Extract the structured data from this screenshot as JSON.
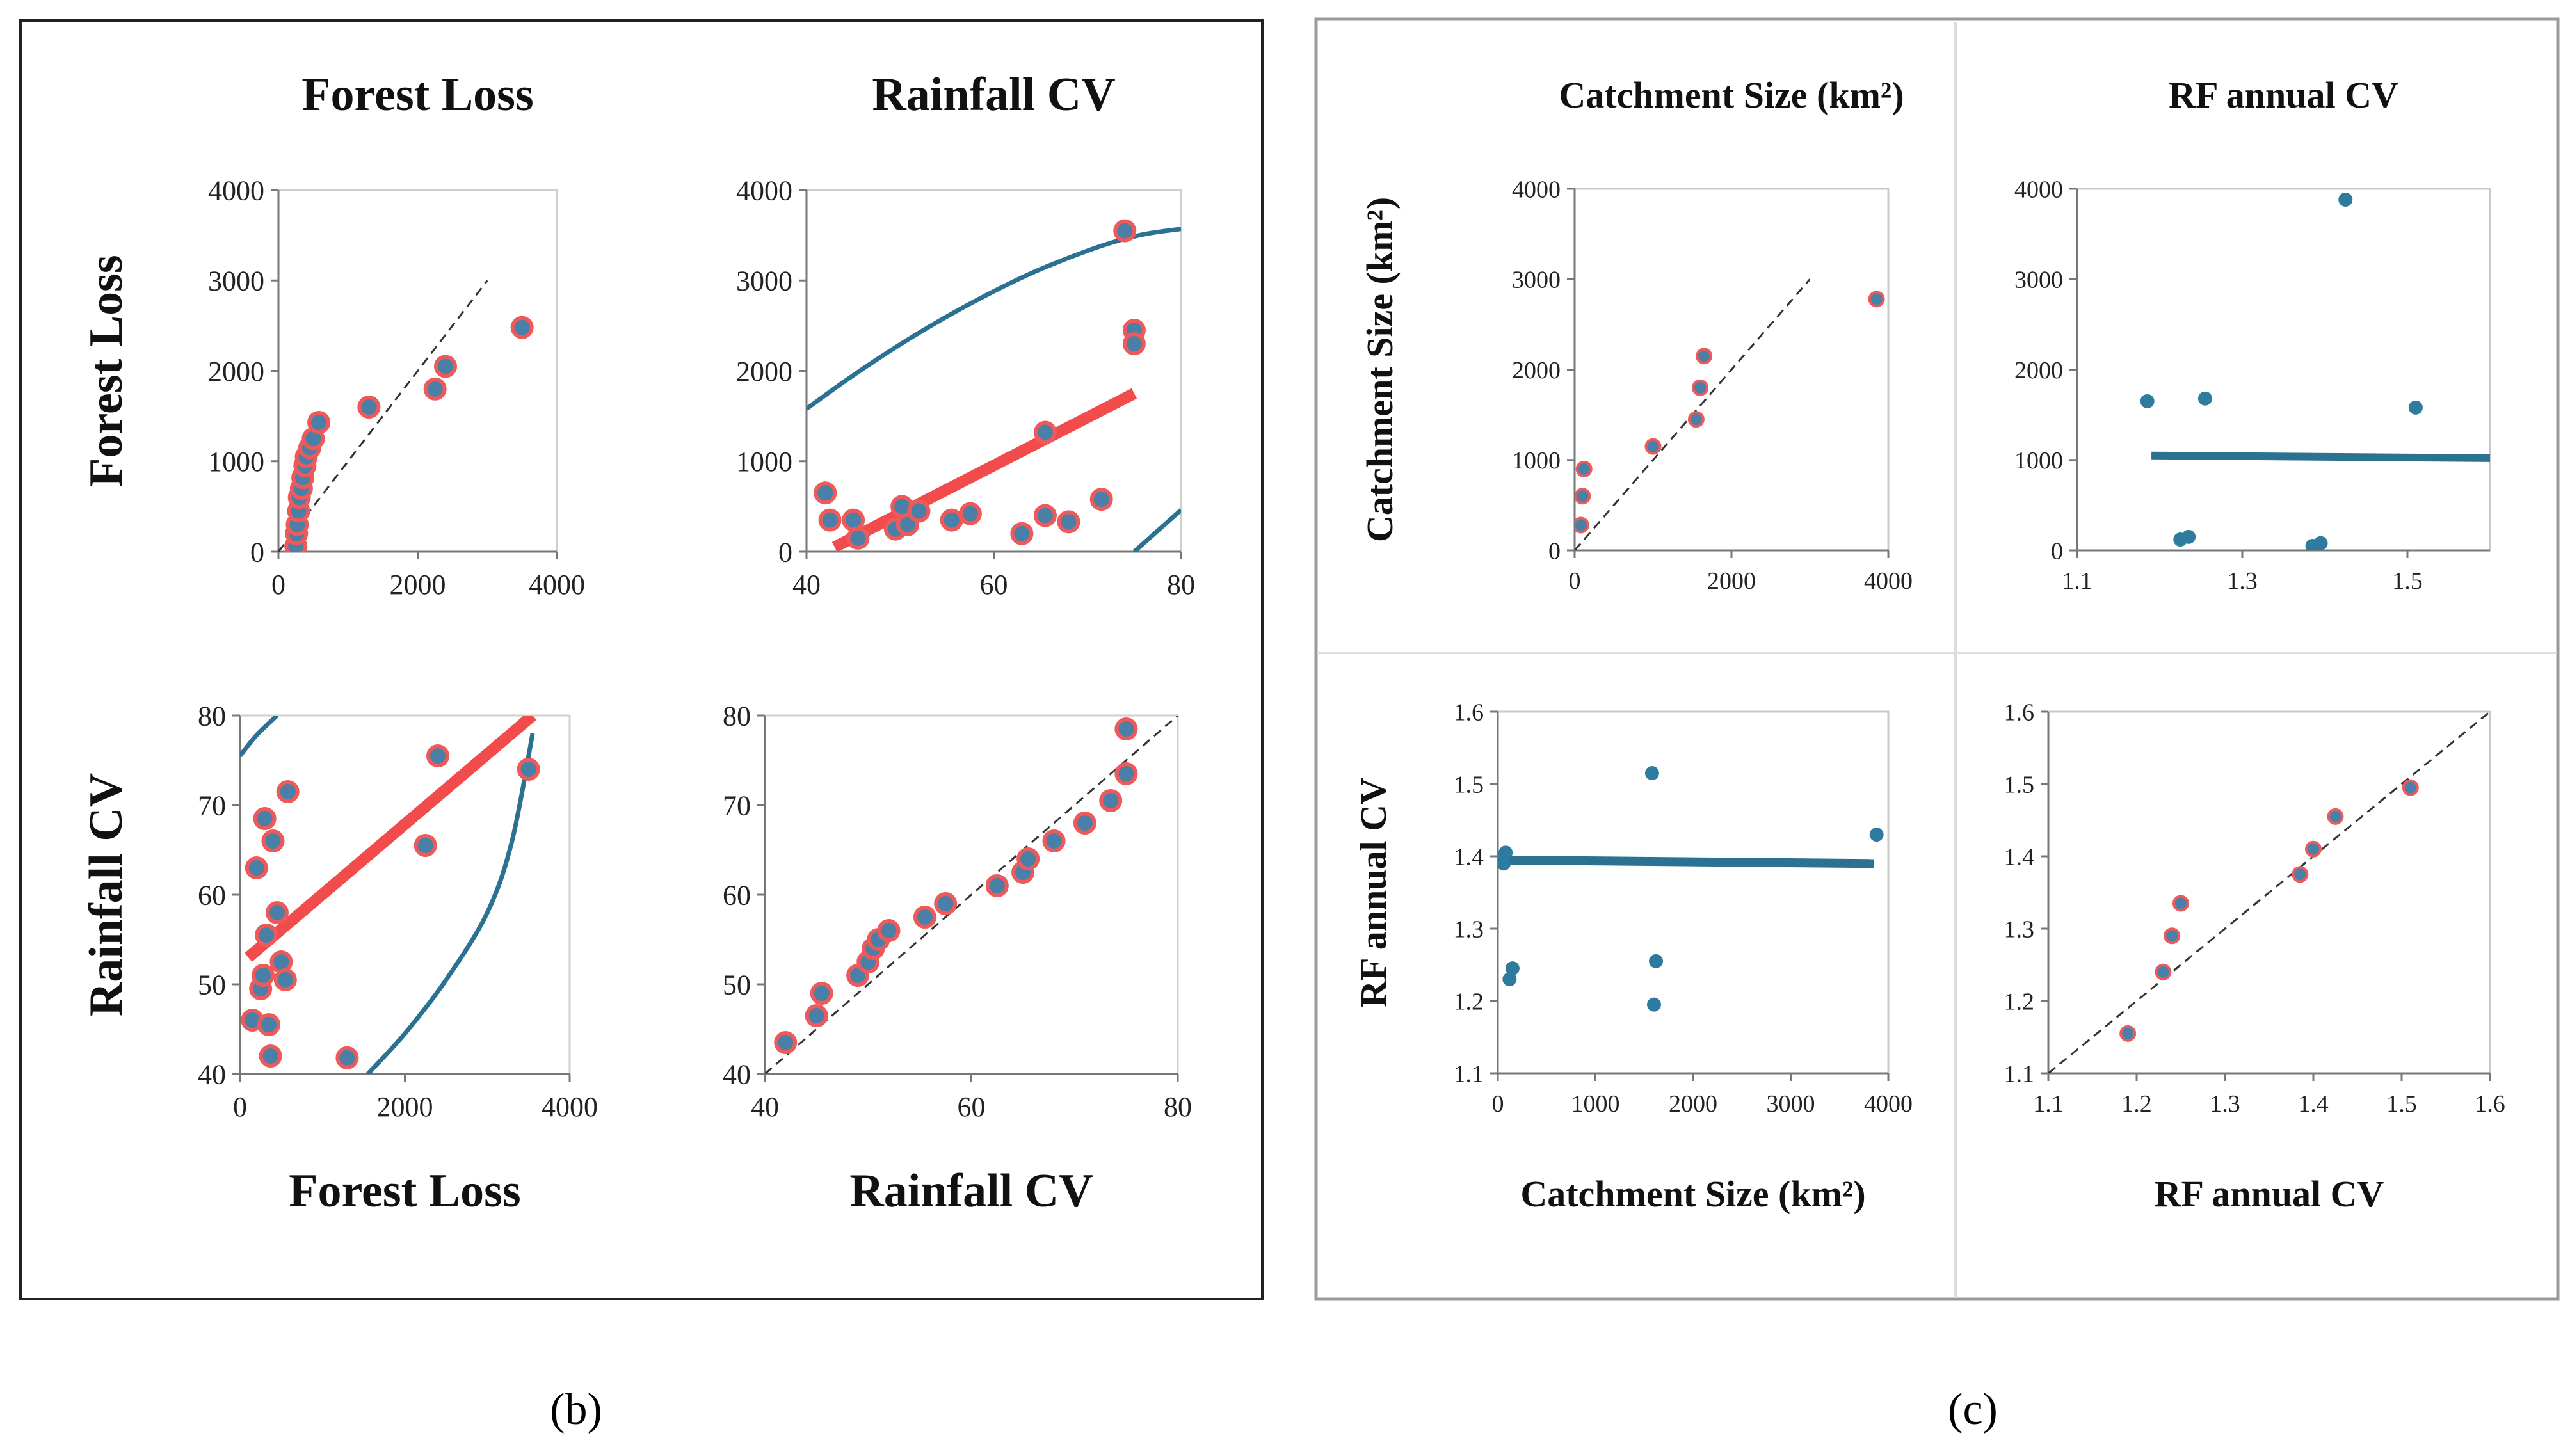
{
  "colors": {
    "point_fill": "#4a7fa8",
    "point_edge": "#ee5a5a",
    "red_line": "#f24b4b",
    "blue_line": "#2b7191",
    "blue_dot": "#2d7ca0",
    "frame": "#222222",
    "grid": "#d8d8d8",
    "dashed": "#333333"
  },
  "panel_labels": {
    "b": "(b)",
    "c": "(c)"
  },
  "chart_data": [
    {
      "id": "b11",
      "type": "scatter",
      "title": "Forest Loss",
      "ylabel": "Forest  Loss",
      "xlabel": "",
      "xlim": [
        0,
        4000
      ],
      "ylim": [
        0,
        4000
      ],
      "xticks": [
        0,
        2000,
        4000
      ],
      "yticks": [
        0,
        1000,
        2000,
        3000,
        4000
      ],
      "xtick_labels": [
        "0",
        "2000",
        "4000"
      ],
      "ytick_labels": [
        "0",
        "1000",
        "2000",
        "3000",
        "4000"
      ],
      "points": {
        "x": [
          250,
          260,
          270,
          290,
          300,
          330,
          350,
          380,
          400,
          450,
          500,
          580,
          1300,
          2250,
          2400,
          3500
        ],
        "y": [
          60,
          200,
          300,
          450,
          600,
          700,
          820,
          950,
          1050,
          1150,
          1250,
          1430,
          1600,
          1800,
          2050,
          2480
        ]
      },
      "ref_line": {
        "x": [
          0,
          3000
        ],
        "y": [
          0,
          3000
        ]
      }
    },
    {
      "id": "b12",
      "type": "scatter",
      "title": "Rainfall  CV",
      "ylabel": "",
      "xlabel": "",
      "xlim": [
        40,
        80
      ],
      "ylim": [
        0,
        4000
      ],
      "xticks": [
        40,
        60,
        80
      ],
      "yticks": [
        0,
        1000,
        2000,
        3000,
        4000
      ],
      "xtick_labels": [
        "40",
        "60",
        "80"
      ],
      "ytick_labels": [
        "0",
        "1000",
        "2000",
        "3000",
        "4000"
      ],
      "points": {
        "x": [
          42,
          42.5,
          45,
          45.5,
          49.5,
          50.2,
          50.8,
          52,
          55.5,
          57.5,
          63,
          65.5,
          65.5,
          68,
          71.5,
          74,
          75,
          75
        ],
        "y": [
          650,
          350,
          350,
          150,
          250,
          500,
          300,
          450,
          350,
          420,
          200,
          1320,
          400,
          330,
          580,
          3550,
          2450,
          2300
        ]
      },
      "fit_line": {
        "x": [
          43,
          75
        ],
        "y": [
          50,
          1750
        ]
      },
      "curves": [
        {
          "x": [
            40,
            44,
            48,
            52,
            56,
            60,
            64,
            68,
            72,
            76,
            80
          ],
          "y": [
            1580,
            1880,
            2160,
            2420,
            2660,
            2880,
            3080,
            3250,
            3400,
            3510,
            3570
          ]
        },
        {
          "x": [
            75,
            77.5,
            80
          ],
          "y": [
            0,
            230,
            460
          ]
        }
      ]
    },
    {
      "id": "b21",
      "type": "scatter",
      "title": "",
      "ylabel": "Rainfall  CV",
      "xlabel": "Forest Loss",
      "xlim": [
        0,
        4000
      ],
      "ylim": [
        40,
        80
      ],
      "xticks": [
        0,
        2000,
        4000
      ],
      "yticks": [
        40,
        50,
        60,
        70,
        80
      ],
      "xtick_labels": [
        "0",
        "2000",
        "4000"
      ],
      "ytick_labels": [
        "40",
        "50",
        "60",
        "70",
        "80"
      ],
      "points": {
        "x": [
          150,
          200,
          250,
          280,
          300,
          320,
          350,
          370,
          400,
          450,
          500,
          550,
          580,
          1300,
          2250,
          2400,
          3500
        ],
        "y": [
          46,
          63,
          49.5,
          51,
          68.5,
          55.5,
          45.5,
          42,
          66,
          58,
          52.5,
          50.5,
          71.5,
          41.8,
          65.5,
          75.5,
          74
        ]
      },
      "fit_line": {
        "x": [
          100,
          3550
        ],
        "y": [
          53,
          80
        ]
      },
      "curves": [
        {
          "x": [
            0,
            200,
            450
          ],
          "y": [
            75.5,
            77.8,
            80
          ]
        },
        {
          "x": [
            1550,
            2000,
            2500,
            3000,
            3300,
            3550
          ],
          "y": [
            40,
            44.5,
            50.5,
            58,
            66,
            78
          ]
        }
      ]
    },
    {
      "id": "b22",
      "type": "scatter",
      "title": "",
      "ylabel": "",
      "xlabel": "Rainfall CV",
      "xlim": [
        40,
        80
      ],
      "ylim": [
        40,
        80
      ],
      "xticks": [
        40,
        60,
        80
      ],
      "yticks": [
        40,
        50,
        60,
        70,
        80
      ],
      "xtick_labels": [
        "40",
        "60",
        "80"
      ],
      "ytick_labels": [
        "40",
        "50",
        "60",
        "70",
        "80"
      ],
      "points": {
        "x": [
          42,
          45,
          45.5,
          49,
          50,
          50.5,
          51,
          52,
          55.5,
          57.5,
          62.5,
          65,
          65.5,
          68,
          71,
          73.5,
          75,
          75
        ],
        "y": [
          43.5,
          46.5,
          49,
          51,
          52.5,
          54,
          55,
          56,
          57.5,
          59,
          61,
          62.5,
          64,
          66,
          68,
          70.5,
          73.5,
          78.5
        ]
      },
      "ref_line": {
        "x": [
          40,
          80
        ],
        "y": [
          40,
          80
        ]
      }
    },
    {
      "id": "c11",
      "type": "scatter",
      "title": "Catchment Size (km²)",
      "ylabel": "Catchment  Size (km²)",
      "xlabel": "",
      "xlim": [
        0,
        4000
      ],
      "ylim": [
        0,
        4000
      ],
      "xticks": [
        0,
        2000,
        4000
      ],
      "yticks": [
        0,
        1000,
        2000,
        3000,
        4000
      ],
      "xtick_labels": [
        "0",
        "2000",
        "4000"
      ],
      "ytick_labels": [
        "0",
        "1000",
        "2000",
        "3000",
        "4000"
      ],
      "points": {
        "x": [
          80,
          100,
          120,
          1000,
          1550,
          1600,
          1650,
          3850
        ],
        "y": [
          280,
          600,
          900,
          1150,
          1450,
          1800,
          2150,
          2780
        ]
      },
      "ref_line": {
        "x": [
          0,
          3000
        ],
        "y": [
          0,
          3000
        ]
      }
    },
    {
      "id": "c12",
      "type": "scatter",
      "title": "RF annual CV",
      "ylabel": "",
      "xlabel": "",
      "xlim": [
        1.1,
        1.6
      ],
      "ylim": [
        0,
        4000
      ],
      "xticks": [
        1.1,
        1.3,
        1.5
      ],
      "yticks": [
        0,
        1000,
        2000,
        3000,
        4000
      ],
      "xtick_labels": [
        "1.1",
        "1.3",
        "1.5"
      ],
      "ytick_labels": [
        "0",
        "1000",
        "2000",
        "3000",
        "4000"
      ],
      "points": {
        "x": [
          1.185,
          1.225,
          1.235,
          1.255,
          1.385,
          1.395,
          1.425,
          1.51
        ],
        "y": [
          1650,
          120,
          150,
          1680,
          50,
          80,
          3880,
          1580
        ]
      },
      "fit_line": {
        "x": [
          1.19,
          1.6
        ],
        "y": [
          1050,
          1020
        ]
      }
    },
    {
      "id": "c21",
      "type": "scatter",
      "title": "",
      "ylabel": "RF annual CV",
      "xlabel": "Catchment Size (km²)",
      "xlim": [
        0,
        4000
      ],
      "ylim": [
        1.1,
        1.6
      ],
      "xticks": [
        0,
        1000,
        2000,
        3000,
        4000
      ],
      "yticks": [
        1.1,
        1.2,
        1.3,
        1.4,
        1.5,
        1.6
      ],
      "xtick_labels": [
        "0",
        "1000",
        "2000",
        "3000",
        "4000"
      ],
      "ytick_labels": [
        "1.1",
        "1.2",
        "1.3",
        "1.4",
        "1.5",
        "1.6"
      ],
      "points": {
        "x": [
          30,
          60,
          80,
          120,
          150,
          1580,
          1600,
          1620,
          3880
        ],
        "y": [
          1.398,
          1.39,
          1.405,
          1.23,
          1.245,
          1.515,
          1.195,
          1.255,
          1.43
        ]
      },
      "fit_line": {
        "x": [
          0,
          3850
        ],
        "y": [
          1.395,
          1.39
        ]
      }
    },
    {
      "id": "c22",
      "type": "scatter",
      "title": "",
      "ylabel": "",
      "xlabel": "RF annual CV",
      "xlim": [
        1.1,
        1.6
      ],
      "ylim": [
        1.1,
        1.6
      ],
      "xticks": [
        1.1,
        1.2,
        1.3,
        1.4,
        1.5,
        1.6
      ],
      "yticks": [
        1.1,
        1.2,
        1.3,
        1.4,
        1.5,
        1.6
      ],
      "xtick_labels": [
        "1.1",
        "1.2",
        "1.3",
        "1.4",
        "1.5",
        "1.6"
      ],
      "ytick_labels": [
        "1.1",
        "1.2",
        "1.3",
        "1.4",
        "1.5",
        "1.6"
      ],
      "points": {
        "x": [
          1.19,
          1.23,
          1.24,
          1.25,
          1.385,
          1.4,
          1.425,
          1.51
        ],
        "y": [
          1.155,
          1.24,
          1.29,
          1.335,
          1.375,
          1.41,
          1.455,
          1.495
        ]
      },
      "ref_line": {
        "x": [
          1.1,
          1.6
        ],
        "y": [
          1.1,
          1.6
        ]
      }
    }
  ]
}
